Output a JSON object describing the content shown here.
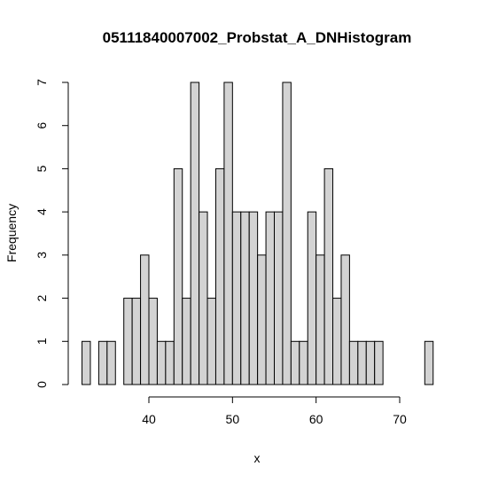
{
  "chart_data": {
    "type": "bar",
    "title": "05111840007002_Probstat_A_DNHistogram",
    "xlabel": "x",
    "ylabel": "Frequency",
    "bin_width": 1,
    "bin_start": 32,
    "values": [
      1,
      0,
      1,
      1,
      0,
      2,
      2,
      3,
      2,
      1,
      1,
      5,
      2,
      7,
      4,
      2,
      5,
      7,
      4,
      4,
      4,
      3,
      4,
      4,
      7,
      1,
      1,
      4,
      3,
      5,
      2,
      3,
      1,
      1,
      1,
      1,
      0,
      0,
      0,
      0,
      0,
      1
    ],
    "xlim": [
      32,
      74
    ],
    "ylim": [
      0,
      7
    ],
    "x_ticks": [
      40,
      50,
      60,
      70
    ],
    "y_ticks": [
      0,
      1,
      2,
      3,
      4,
      5,
      6,
      7
    ],
    "colors": {
      "bar_fill": "#d3d3d3",
      "bar_stroke": "#000000"
    },
    "grid": false,
    "legend": "none"
  }
}
